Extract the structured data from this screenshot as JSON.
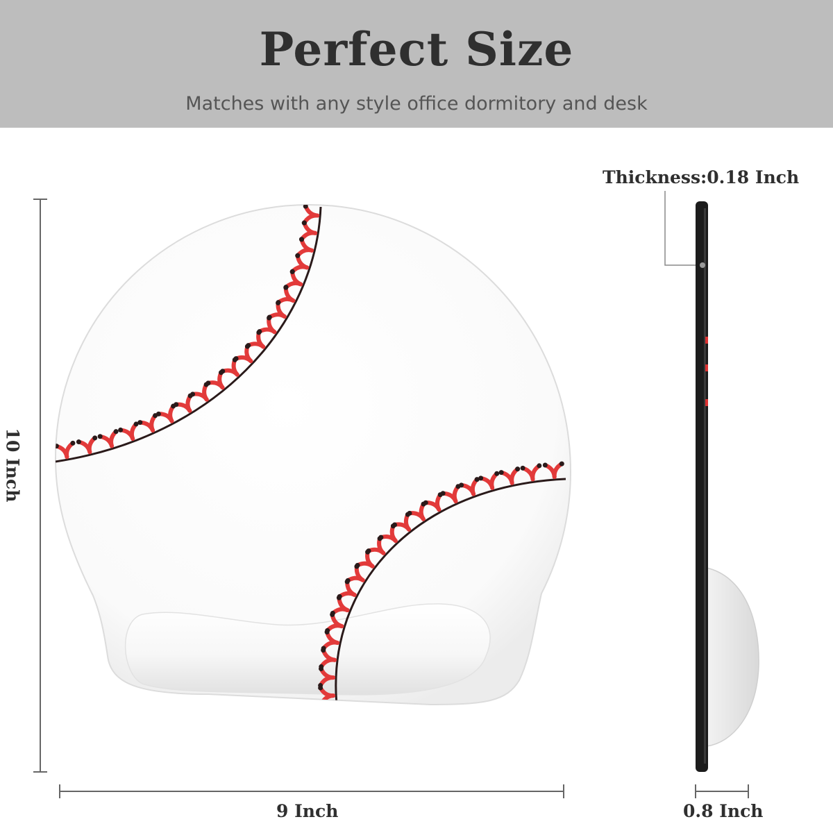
{
  "header": {
    "title": "Perfect Size",
    "subtitle": "Matches with any style office dormitory and desk"
  },
  "dimensions": {
    "height_label": "10 Inch",
    "width_label": "9 Inch",
    "depth_label": "0.8 Inch",
    "thickness_label": "Thickness:0.18 Inch"
  },
  "colors": {
    "header_bg": "#bdbdbd",
    "stitch_red": "#e23a3a",
    "seam_dark": "#2a1a1a",
    "pad_edge": "#1c1c1c"
  }
}
